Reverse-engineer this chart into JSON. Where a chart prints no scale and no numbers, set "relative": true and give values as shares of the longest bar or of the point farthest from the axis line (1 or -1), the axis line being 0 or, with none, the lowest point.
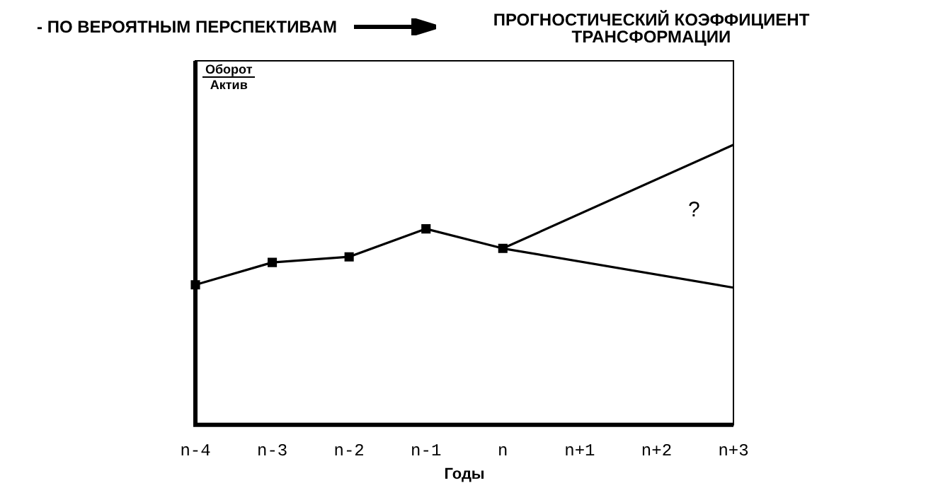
{
  "chart_data": {
    "type": "line",
    "title": "- ПО ВЕРОЯТНЫМ ПЕРСПЕКТИВАМ",
    "subtitle": "ПРОГНОСТИЧЕСКИЙ КОЭФФИЦИЕНТ ТРАНСФОРМАЦИИ",
    "xlabel": "Годы",
    "ylabel": "Оборот\nАктив",
    "relative": true,
    "categories": [
      "n-4",
      "n-3",
      "n-2",
      "n-1",
      "n",
      "n+1",
      "n+2",
      "n+3"
    ],
    "series": [
      {
        "color": "#000000",
        "marker": "square",
        "values": [
          0.5,
          0.58,
          0.6,
          0.7,
          0.63,
          null,
          null,
          null
        ]
      },
      {
        "color": "#000000",
        "values": [
          null,
          null,
          null,
          null,
          0.63,
          null,
          null,
          1.0
        ]
      },
      {
        "color": "#000000",
        "values": [
          null,
          null,
          null,
          null,
          0.63,
          null,
          null,
          0.49
        ]
      }
    ],
    "annotations": [
      "?"
    ],
    "grid": false,
    "legend": false
  }
}
